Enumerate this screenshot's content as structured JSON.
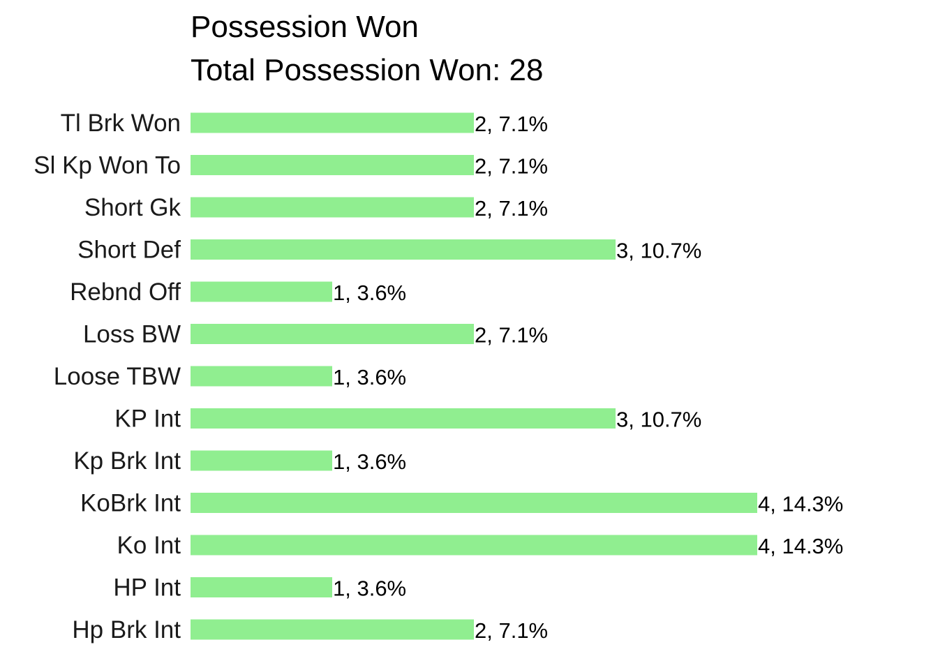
{
  "chart_data": {
    "type": "bar",
    "orientation": "horizontal",
    "title": "Possession Won",
    "subtitle": "Total Possession Won: 28",
    "xlabel": "",
    "ylabel": "",
    "grid": false,
    "bar_color": "#90EE90",
    "xlim": [
      0,
      4
    ],
    "categories": [
      "Tl Brk Won",
      "Sl Kp Won To",
      "Short Gk",
      "Short Def",
      "Rebnd Off",
      "Loss BW",
      "Loose TBW",
      "KP Int",
      "Kp Brk Int",
      "KoBrk Int",
      "Ko Int",
      "HP Int",
      "Hp Brk Int"
    ],
    "values": [
      2,
      2,
      2,
      3,
      1,
      2,
      1,
      3,
      1,
      4,
      4,
      1,
      2
    ],
    "labels": [
      "2, 7.1%",
      "2, 7.1%",
      "2, 7.1%",
      "3, 10.7%",
      "1, 3.6%",
      "2, 7.1%",
      "1, 3.6%",
      "3, 10.7%",
      "1, 3.6%",
      "4, 14.3%",
      "4, 14.3%",
      "1, 3.6%",
      "2, 7.1%"
    ]
  }
}
